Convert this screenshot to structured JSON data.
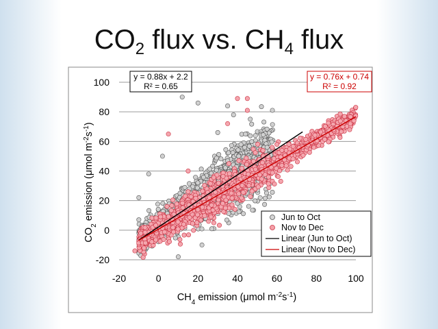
{
  "slide": {
    "title_main": "CO",
    "title_sub1": "2",
    "title_mid": " flux vs. CH",
    "title_sub2": "4",
    "title_end": " flux"
  },
  "chart_data": {
    "type": "scatter",
    "title": "CO2 flux vs. CH4 flux",
    "xlabel": "CH4 emission (μmol m-2s-1)",
    "ylabel": "CO2 emission (μmol m-2s-1)",
    "xlim": [
      -20,
      100
    ],
    "ylim": [
      -20,
      100
    ],
    "x_ticks": [
      -20,
      0,
      20,
      40,
      60,
      80,
      100
    ],
    "y_ticks": [
      -20,
      0,
      20,
      40,
      60,
      80,
      100
    ],
    "grid": true,
    "legend_position": "bottom-right",
    "series": [
      {
        "name": "Jun to Oct",
        "color": "#a9a9a9",
        "x_range": [
          -10,
          58
        ],
        "points": [
          [
            -10,
            22
          ],
          [
            12,
            90
          ],
          [
            20,
            86
          ],
          [
            30,
            66
          ],
          [
            35,
            84
          ],
          [
            38,
            78
          ],
          [
            -5,
            38
          ],
          [
            55,
            56
          ],
          [
            10,
            -18
          ],
          [
            22,
            -10
          ],
          [
            2,
            50
          ]
        ]
      },
      {
        "name": "Nov to Dec",
        "color": "#ee7f8a",
        "x_range": [
          -10,
          100
        ],
        "points": [
          [
            40,
            89
          ],
          [
            45,
            89
          ],
          [
            45,
            81
          ],
          [
            5,
            65
          ],
          [
            35,
            72
          ],
          [
            15,
            40
          ],
          [
            28,
            5
          ],
          [
            60,
            58
          ],
          [
            -12,
            -14
          ],
          [
            95,
            74
          ]
        ]
      }
    ],
    "fits": [
      {
        "name": "Linear (Jun to Oct)",
        "equation": "y = 0.88x + 2.2",
        "r2": "R² = 0.65",
        "slope": 0.88,
        "intercept": 2.2,
        "x_range": [
          -10,
          73
        ],
        "color": "#000000"
      },
      {
        "name": "Linear (Nov to Dec)",
        "equation": "y = 0.76x + 0.74",
        "r2": "R² = 0.92",
        "slope": 0.76,
        "intercept": 0.74,
        "x_range": [
          -10,
          100
        ],
        "color": "#cc0000"
      }
    ],
    "legend": [
      "Jun to Oct",
      "Nov to Dec",
      "Linear (Jun to Oct)",
      "Linear (Nov to Dec)"
    ]
  }
}
